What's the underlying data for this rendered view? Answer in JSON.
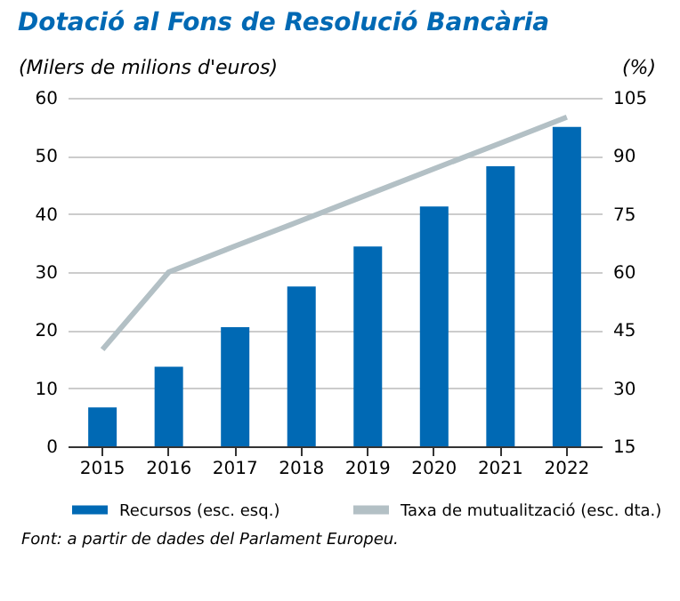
{
  "chart_data": {
    "type": "bar",
    "title": "Dotació al Fons de Resolució Bancària",
    "ylabel": "(Milers de milions d'euros)",
    "y2label": "(%)",
    "categories": [
      "2015",
      "2016",
      "2017",
      "2018",
      "2019",
      "2020",
      "2021",
      "2022"
    ],
    "series": [
      {
        "name": "Recursos (esc. esq.)",
        "color": "#0069b4",
        "values": [
          6.7,
          13.7,
          20.5,
          27.5,
          34.4,
          41.3,
          48.2,
          55
        ]
      },
      {
        "name": "Taxa de mutualització (esc. dta.)",
        "type": "line",
        "axis": "y2",
        "color": "#b3c0c5",
        "values": [
          40,
          60,
          66.7,
          73.3,
          80,
          86.7,
          93.3,
          100
        ]
      }
    ],
    "ylim": [
      0,
      60
    ],
    "yticks": [
      0,
      10,
      20,
      30,
      40,
      50,
      60
    ],
    "y2lim": [
      15,
      105
    ],
    "y2ticks": [
      15,
      30,
      45,
      60,
      75,
      90,
      105
    ],
    "grid": "y",
    "legend": "bottom",
    "annotations": [
      "Font: a partir de dades del Parlament Europeu."
    ]
  }
}
